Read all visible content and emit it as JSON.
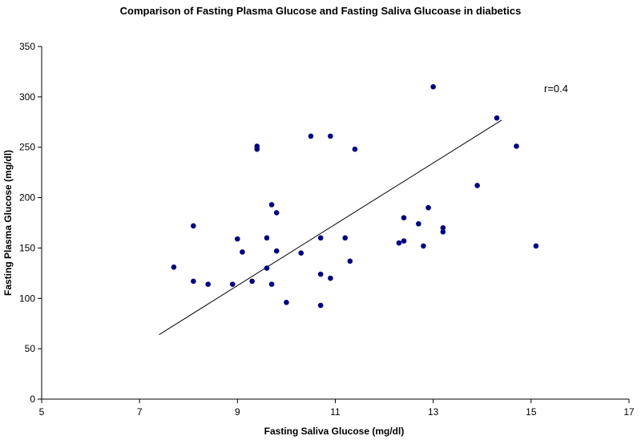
{
  "chart_data": {
    "type": "scatter",
    "title": "Comparison of Fasting Plasma Glucose and Fasting Saliva Glucoase in diabetics",
    "xlabel": "Fasting Saliva Glucose (mg/dl)",
    "ylabel": "Fasting Plasma Glucose (mg/dl)",
    "xlim": [
      5,
      17
    ],
    "ylim": [
      0,
      350
    ],
    "xticks": [
      5,
      7,
      9,
      11,
      13,
      15,
      17
    ],
    "yticks": [
      0,
      50,
      100,
      150,
      200,
      250,
      300,
      350
    ],
    "grid": false,
    "legend": "none",
    "marker_color": "#000080",
    "annotation": "r=0.4",
    "trendline": {
      "x": [
        7.4,
        14.4
      ],
      "y": [
        64,
        277
      ]
    },
    "points": [
      {
        "x": 7.7,
        "y": 131
      },
      {
        "x": 8.1,
        "y": 172
      },
      {
        "x": 8.1,
        "y": 117
      },
      {
        "x": 8.4,
        "y": 114
      },
      {
        "x": 8.9,
        "y": 114
      },
      {
        "x": 9.0,
        "y": 159
      },
      {
        "x": 9.1,
        "y": 146
      },
      {
        "x": 9.3,
        "y": 117
      },
      {
        "x": 9.4,
        "y": 251
      },
      {
        "x": 9.4,
        "y": 248
      },
      {
        "x": 9.6,
        "y": 160
      },
      {
        "x": 9.6,
        "y": 130
      },
      {
        "x": 9.7,
        "y": 193
      },
      {
        "x": 9.7,
        "y": 114
      },
      {
        "x": 9.8,
        "y": 185
      },
      {
        "x": 9.8,
        "y": 147
      },
      {
        "x": 10.0,
        "y": 96
      },
      {
        "x": 10.3,
        "y": 145
      },
      {
        "x": 10.5,
        "y": 261
      },
      {
        "x": 10.7,
        "y": 160
      },
      {
        "x": 10.7,
        "y": 124
      },
      {
        "x": 10.7,
        "y": 93
      },
      {
        "x": 10.9,
        "y": 261
      },
      {
        "x": 10.9,
        "y": 120
      },
      {
        "x": 11.2,
        "y": 160
      },
      {
        "x": 11.3,
        "y": 137
      },
      {
        "x": 11.4,
        "y": 248
      },
      {
        "x": 12.3,
        "y": 155
      },
      {
        "x": 12.4,
        "y": 180
      },
      {
        "x": 12.4,
        "y": 157
      },
      {
        "x": 12.7,
        "y": 174
      },
      {
        "x": 12.8,
        "y": 152
      },
      {
        "x": 12.9,
        "y": 190
      },
      {
        "x": 13.0,
        "y": 310
      },
      {
        "x": 13.2,
        "y": 170
      },
      {
        "x": 13.2,
        "y": 166
      },
      {
        "x": 13.9,
        "y": 212
      },
      {
        "x": 14.3,
        "y": 279
      },
      {
        "x": 14.7,
        "y": 251
      },
      {
        "x": 15.1,
        "y": 152
      }
    ]
  }
}
